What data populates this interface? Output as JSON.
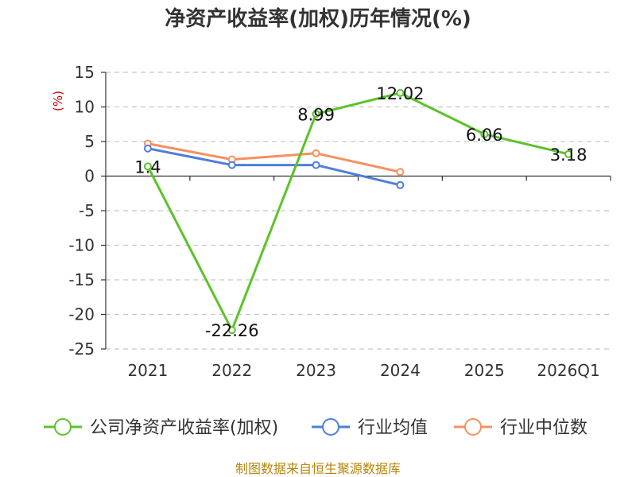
{
  "chart_data": {
    "type": "line",
    "title": "净资产收益率(加权)历年情况(%)",
    "ylabel": "(%)",
    "xlabel": "",
    "categories": [
      "2021",
      "2022",
      "2023",
      "2024",
      "2025",
      "2026Q1"
    ],
    "ylim": [
      -25,
      15
    ],
    "yticks": [
      15,
      10,
      5,
      0,
      -5,
      -10,
      -15,
      -20,
      -25
    ],
    "grid": true,
    "legend_position": "bottom",
    "series": [
      {
        "name": "公司净资产收益率(加权)",
        "color": "#5cc22a",
        "values": [
          1.4,
          -22.26,
          8.99,
          12.02,
          6.06,
          3.18
        ],
        "labels": [
          "1.4",
          "-22.26",
          "8.99",
          "12.02",
          "6.06",
          "3.18"
        ]
      },
      {
        "name": "行业均值",
        "color": "#4e7fd9",
        "values": [
          4.0,
          1.6,
          1.6,
          -1.3,
          null,
          null
        ]
      },
      {
        "name": "行业中位数",
        "color": "#f59060",
        "values": [
          4.7,
          2.4,
          3.3,
          0.6,
          null,
          null
        ]
      }
    ]
  },
  "source": "制图数据来自恒生聚源数据库"
}
